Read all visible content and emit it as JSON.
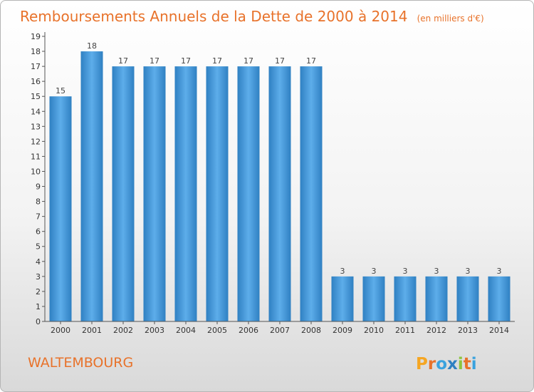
{
  "chart_data": {
    "type": "bar",
    "title": "Remboursements Annuels de la Dette de 2000 à 2014",
    "unit": "(en milliers d'€)",
    "categories": [
      "2000",
      "2001",
      "2002",
      "2003",
      "2004",
      "2005",
      "2006",
      "2007",
      "2008",
      "2009",
      "2010",
      "2011",
      "2012",
      "2013",
      "2014"
    ],
    "values": [
      15,
      18,
      17,
      17,
      17,
      17,
      17,
      17,
      17,
      3,
      3,
      3,
      3,
      3,
      3
    ],
    "data_labels": [
      "15",
      "18",
      "17",
      "17",
      "17",
      "17",
      "17",
      "17",
      "17",
      "3",
      "3",
      "3",
      "3",
      "3",
      "3"
    ],
    "ylim": [
      0,
      19
    ],
    "yticks": [
      0,
      1,
      2,
      3,
      4,
      5,
      6,
      7,
      8,
      9,
      10,
      11,
      12,
      13,
      14,
      15,
      16,
      17,
      18,
      19
    ],
    "grid": false,
    "colors": {
      "bar_light": "#5dadea",
      "bar_dark": "#2f80c2",
      "accent": "#e8722a"
    }
  },
  "footer": {
    "city": "WALTEMBOURG",
    "logo_text": "Proxiti"
  }
}
